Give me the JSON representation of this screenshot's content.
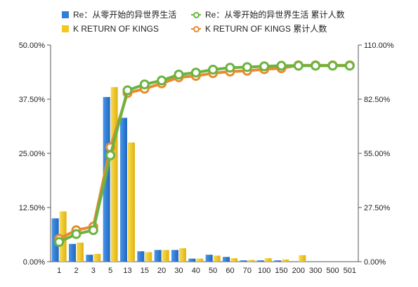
{
  "legend": {
    "s1_label": "Re：从零开始的异世界生活",
    "s2_label": "K RETURN OF KINGS",
    "s3_label": "Re：从零开始的异世界生活 累计人数",
    "s4_label": "K RETURN OF KINGS 累计人数"
  },
  "chart_data": {
    "type": "bar",
    "categories": [
      "1",
      "2",
      "3",
      "5",
      "13",
      "15",
      "20",
      "30",
      "40",
      "50",
      "60",
      "70",
      "100",
      "150",
      "200",
      "300",
      "500",
      "501"
    ],
    "left_axis": {
      "min": 0,
      "max": 50,
      "ticks": [
        "0.00%",
        "12.50%",
        "25.00%",
        "37.50%",
        "50.00%"
      ]
    },
    "right_axis": {
      "min": 0,
      "max": 110,
      "ticks": [
        "0.00%",
        "27.50%",
        "55.00%",
        "82.50%",
        "110.00%"
      ]
    },
    "series": [
      {
        "name": "Re：从零开始的异世界生活",
        "kind": "bar",
        "axis": "left",
        "color": "#2f7fd8",
        "values": [
          10.0,
          4.1,
          1.6,
          38.0,
          33.2,
          2.4,
          2.7,
          2.7,
          0.7,
          1.6,
          1.1,
          0.3,
          0.3,
          0.3,
          0.0,
          0.0,
          0.0,
          0.0
        ]
      },
      {
        "name": "K RETURN OF KINGS",
        "kind": "bar",
        "axis": "left",
        "color": "#f2c81d",
        "values": [
          11.6,
          4.4,
          1.8,
          40.3,
          27.5,
          2.2,
          2.7,
          3.1,
          0.7,
          1.4,
          0.8,
          0.4,
          0.8,
          0.5,
          1.5,
          0.0,
          0.0,
          0.0
        ]
      },
      {
        "name": "Re：从零开始的异世界生活 累计人数",
        "kind": "line",
        "axis": "right",
        "color": "#6cb33f",
        "values": [
          10.0,
          14.0,
          16.0,
          54.0,
          87.0,
          90.0,
          92.0,
          95.0,
          96.0,
          97.5,
          98.5,
          98.8,
          99.2,
          99.5,
          99.5,
          99.5,
          99.5,
          99.5
        ]
      },
      {
        "name": "K RETURN OF KINGS 累计人数",
        "kind": "line",
        "axis": "right",
        "color": "#e88b2e",
        "values": [
          11.6,
          16.0,
          17.8,
          58.1,
          85.6,
          87.8,
          90.5,
          93.6,
          94.3,
          95.7,
          96.5,
          96.9,
          97.7,
          98.2,
          99.7,
          99.7,
          99.7,
          99.7
        ]
      }
    ],
    "grid": false,
    "legend_position": "top"
  }
}
